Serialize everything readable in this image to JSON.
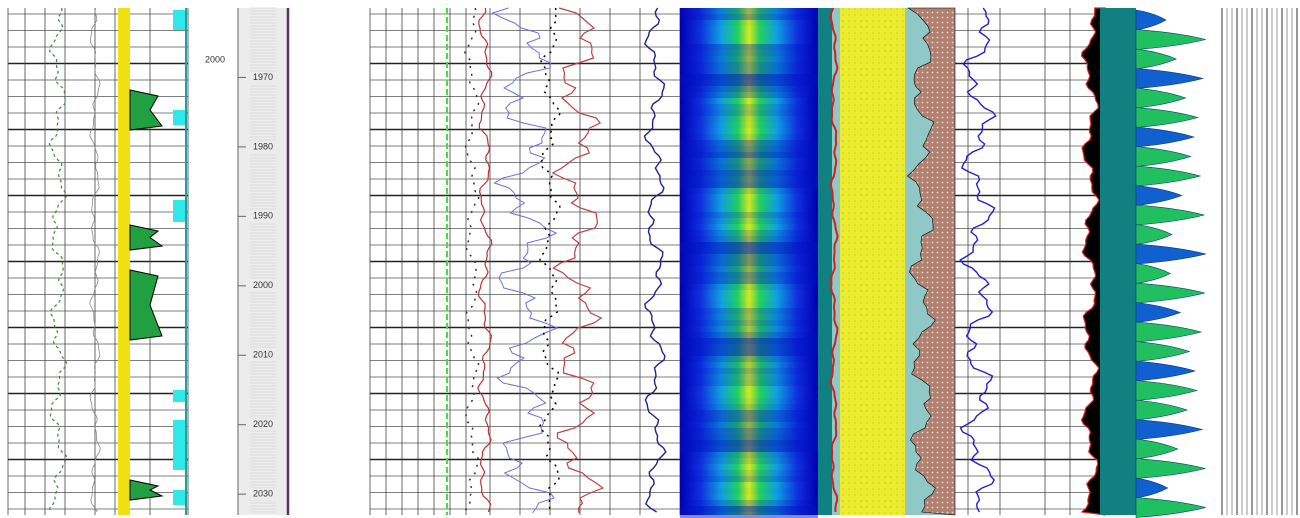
{
  "chart_data": {
    "type": "well-log",
    "annotation": "2000",
    "ylim": [
      1960,
      2033
    ],
    "yticks": [
      1970,
      1980,
      1990,
      2000,
      2010,
      2020,
      2030
    ]
  }
}
